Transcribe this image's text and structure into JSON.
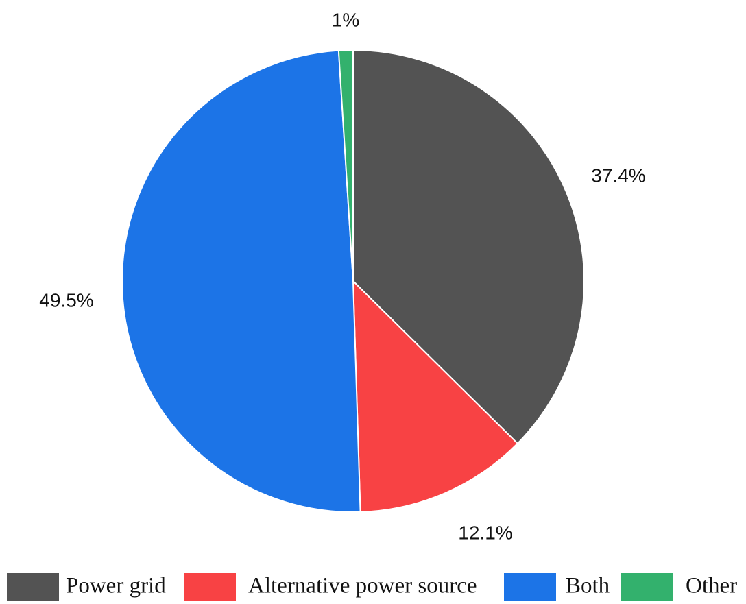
{
  "chart_data": {
    "type": "pie",
    "title": "",
    "slices": [
      {
        "label": "Power grid",
        "value": 37.4,
        "display": "37.4%",
        "color": "#535353"
      },
      {
        "label": "Alternative power source",
        "value": 12.1,
        "display": "12.1%",
        "color": "#f84244"
      },
      {
        "label": "Both",
        "value": 49.5,
        "display": "49.5%",
        "color": "#1c74e7"
      },
      {
        "label": "Other",
        "value": 1.0,
        "display": "1%",
        "color": "#33b16d"
      }
    ],
    "start": "top",
    "direction": "clockwise",
    "legend_position": "bottom",
    "slice_border_color": "#ffffff"
  }
}
